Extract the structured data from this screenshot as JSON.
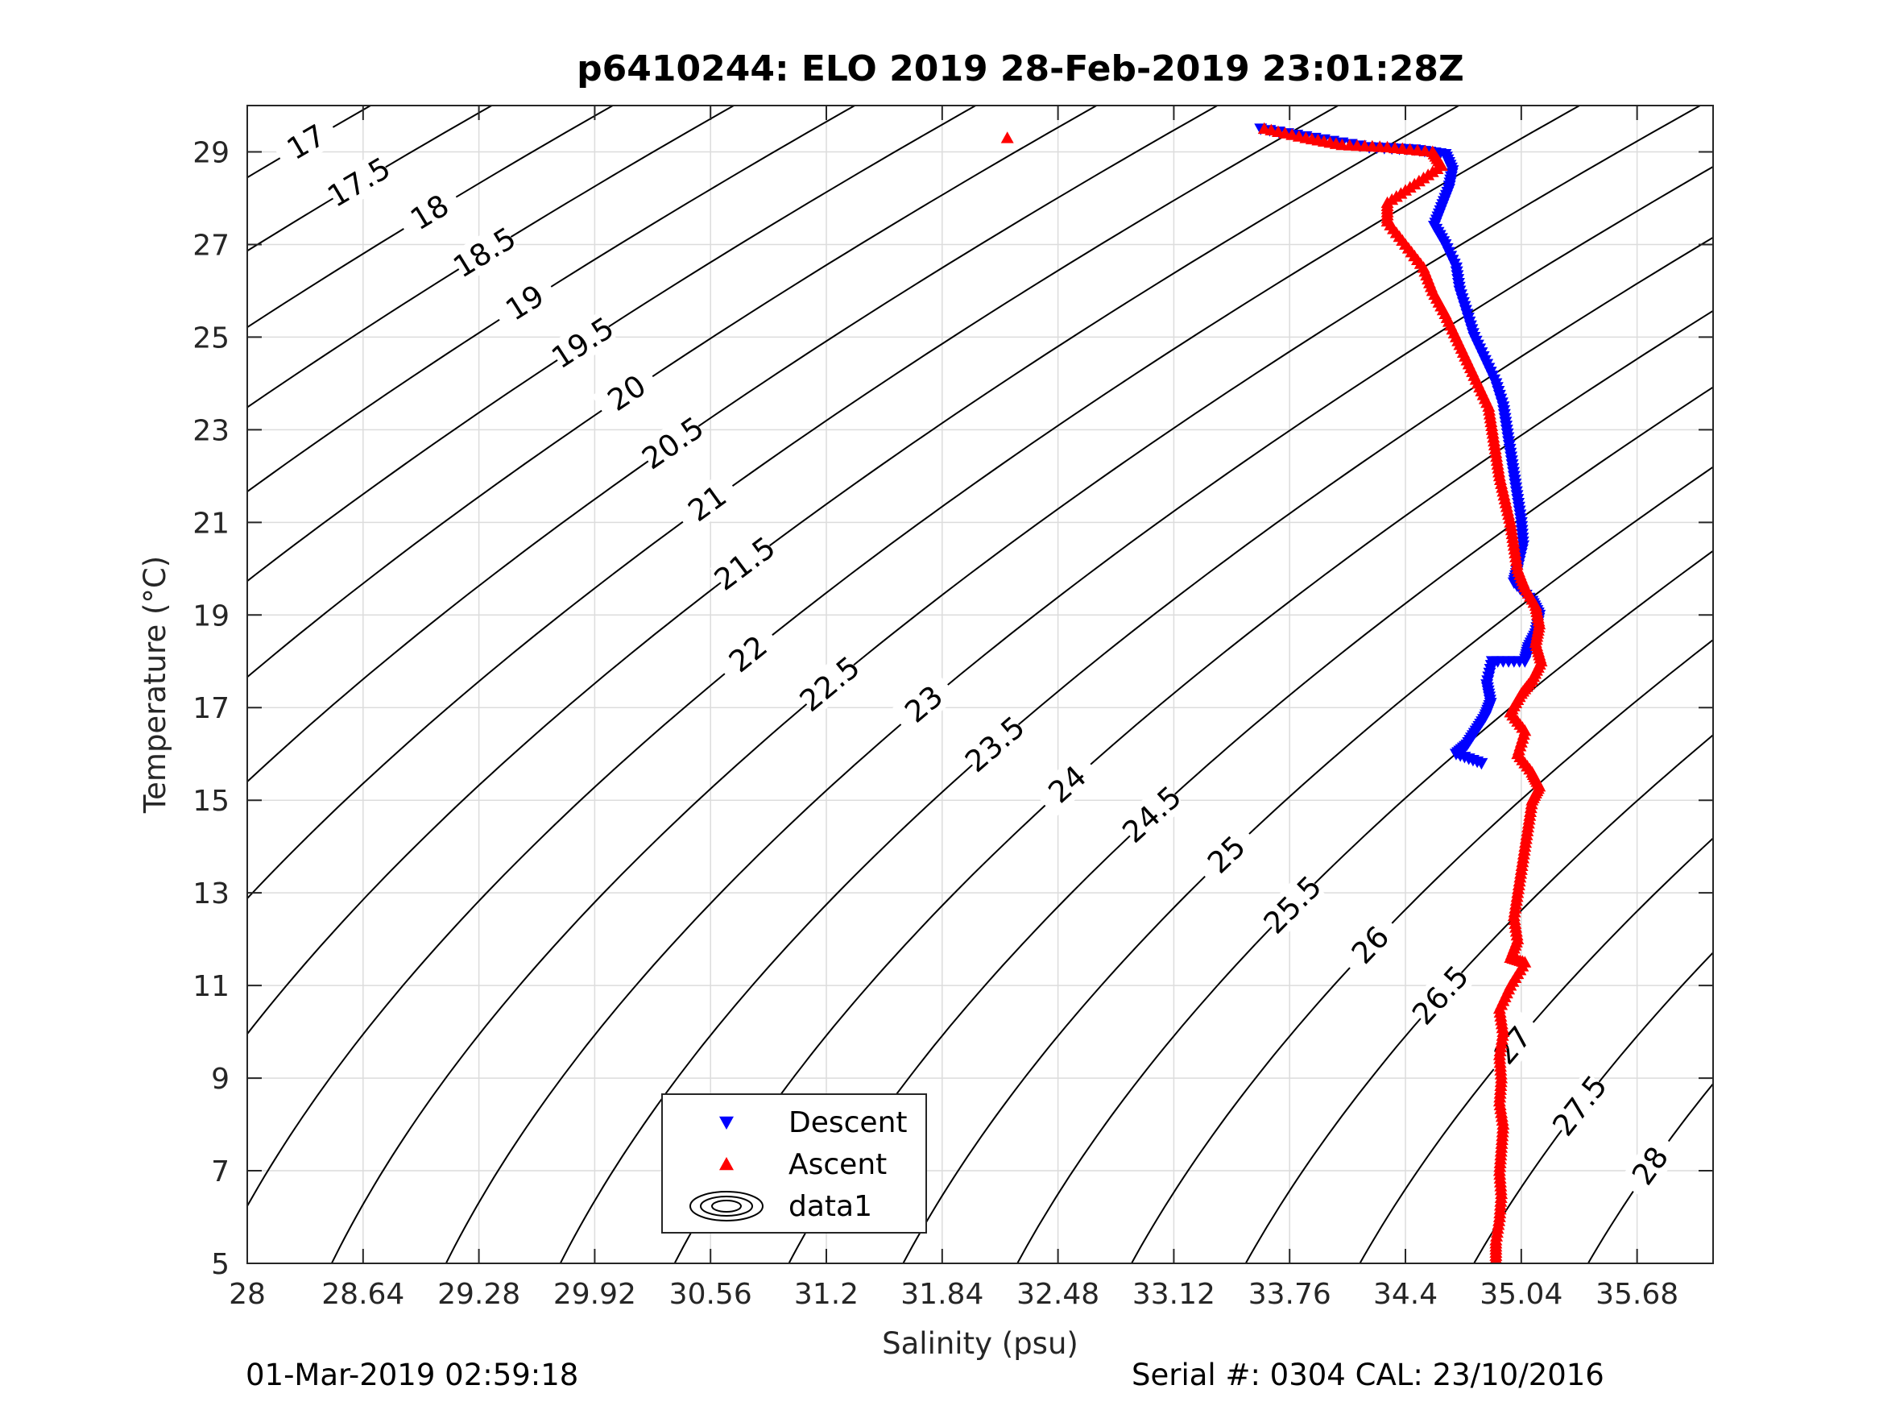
{
  "chart_data": {
    "type": "scatter",
    "title": "p6410244: ELO 2019 28-Feb-2019 23:01:28Z",
    "xlabel": "Salinity (psu)",
    "ylabel": "Temperature (°C)",
    "xlim": [
      28,
      36.1
    ],
    "ylim": [
      5,
      30
    ],
    "xticks": [
      "28",
      "28.64",
      "29.28",
      "29.92",
      "30.56",
      "31.2",
      "31.84",
      "32.48",
      "33.12",
      "33.76",
      "34.4",
      "35.04",
      "35.68"
    ],
    "yticks": [
      "5",
      "7",
      "9",
      "11",
      "13",
      "15",
      "17",
      "19",
      "21",
      "23",
      "25",
      "27",
      "29"
    ],
    "grid": true,
    "legend": {
      "position": "bottom-center",
      "entries": [
        "Descent",
        "Ascent",
        "data1"
      ]
    },
    "colors": {
      "descent": "#0000ff",
      "ascent": "#ff0000",
      "contour": "#000000",
      "grid": "#dcdcdc"
    },
    "contour_levels": [
      "17",
      "17.5",
      "18",
      "18.5",
      "19",
      "19.5",
      "20",
      "20.5",
      "21",
      "21.5",
      "22",
      "22.5",
      "23",
      "23.5",
      "24",
      "24.5",
      "25",
      "25.5",
      "26",
      "26.5",
      "27",
      "27.5",
      "28"
    ],
    "series": [
      {
        "name": "Descent",
        "marker": "down-triangle",
        "points": [
          [
            33.6,
            29.5
          ],
          [
            33.9,
            29.3
          ],
          [
            34.2,
            29.1
          ],
          [
            34.45,
            29.05
          ],
          [
            34.62,
            28.95
          ],
          [
            34.66,
            28.6
          ],
          [
            34.64,
            28.2
          ],
          [
            34.6,
            27.8
          ],
          [
            34.56,
            27.4
          ],
          [
            34.62,
            27.0
          ],
          [
            34.68,
            26.5
          ],
          [
            34.7,
            26.0
          ],
          [
            34.74,
            25.5
          ],
          [
            34.78,
            25.0
          ],
          [
            34.84,
            24.5
          ],
          [
            34.9,
            24.0
          ],
          [
            34.94,
            23.5
          ],
          [
            34.96,
            23.0
          ],
          [
            34.98,
            22.5
          ],
          [
            35.0,
            22.0
          ],
          [
            35.02,
            21.5
          ],
          [
            35.04,
            21.0
          ],
          [
            35.05,
            20.5
          ],
          [
            35.02,
            20.0
          ],
          [
            35.0,
            19.7
          ],
          [
            35.1,
            19.3
          ],
          [
            35.14,
            19.0
          ],
          [
            35.12,
            18.6
          ],
          [
            35.08,
            18.3
          ],
          [
            35.06,
            18.0
          ],
          [
            34.88,
            18.0
          ],
          [
            34.85,
            17.5
          ],
          [
            34.87,
            17.1
          ],
          [
            34.84,
            16.8
          ],
          [
            34.79,
            16.5
          ],
          [
            34.74,
            16.2
          ],
          [
            34.68,
            16.0
          ],
          [
            34.82,
            15.8
          ]
        ]
      },
      {
        "name": "Ascent",
        "marker": "up-triangle",
        "points": [
          [
            32.2,
            29.3
          ],
          [
            33.62,
            29.5
          ],
          [
            33.85,
            29.3
          ],
          [
            34.05,
            29.15
          ],
          [
            34.3,
            29.1
          ],
          [
            34.55,
            29.0
          ],
          [
            34.6,
            28.7
          ],
          [
            34.45,
            28.3
          ],
          [
            34.3,
            27.9
          ],
          [
            34.3,
            27.5
          ],
          [
            34.4,
            27.0
          ],
          [
            34.5,
            26.5
          ],
          [
            34.55,
            26.0
          ],
          [
            34.62,
            25.5
          ],
          [
            34.68,
            25.0
          ],
          [
            34.74,
            24.5
          ],
          [
            34.8,
            24.0
          ],
          [
            34.86,
            23.5
          ],
          [
            34.88,
            23.0
          ],
          [
            34.9,
            22.5
          ],
          [
            34.92,
            22.0
          ],
          [
            34.95,
            21.5
          ],
          [
            34.98,
            21.0
          ],
          [
            35.0,
            20.5
          ],
          [
            35.02,
            20.0
          ],
          [
            35.06,
            19.6
          ],
          [
            35.12,
            19.2
          ],
          [
            35.14,
            18.8
          ],
          [
            35.12,
            18.4
          ],
          [
            35.15,
            18.0
          ],
          [
            35.1,
            17.6
          ],
          [
            35.04,
            17.3
          ],
          [
            34.98,
            16.9
          ],
          [
            35.06,
            16.5
          ],
          [
            35.02,
            16.0
          ],
          [
            35.1,
            15.6
          ],
          [
            35.14,
            15.3
          ],
          [
            35.1,
            15.0
          ],
          [
            35.08,
            14.5
          ],
          [
            35.06,
            14.0
          ],
          [
            35.04,
            13.5
          ],
          [
            35.02,
            13.0
          ],
          [
            35.0,
            12.5
          ],
          [
            35.02,
            12.0
          ],
          [
            34.98,
            11.6
          ],
          [
            35.06,
            11.5
          ],
          [
            34.98,
            11.0
          ],
          [
            34.92,
            10.5
          ],
          [
            34.94,
            10.0
          ],
          [
            34.92,
            9.5
          ],
          [
            34.93,
            9.0
          ],
          [
            34.92,
            8.5
          ],
          [
            34.94,
            8.0
          ],
          [
            34.93,
            7.5
          ],
          [
            34.92,
            7.0
          ],
          [
            34.93,
            6.5
          ],
          [
            34.92,
            6.0
          ],
          [
            34.9,
            5.5
          ],
          [
            34.9,
            5.1
          ]
        ]
      }
    ]
  },
  "footer": {
    "left": "01-Mar-2019 02:59:18",
    "right": "Serial #: 0304  CAL: 23/10/2016"
  }
}
